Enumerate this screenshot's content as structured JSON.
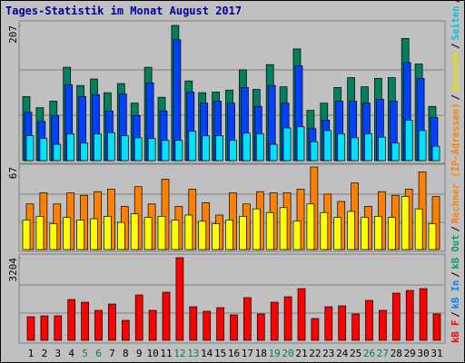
{
  "title": "Tages-Statistik im Monat August 2017",
  "legend": {
    "separator": "/",
    "items": [
      {
        "text": "kB F",
        "color": "#ff0000"
      },
      {
        "text": "kB In",
        "color": "#0080ff"
      },
      {
        "text": "kB Out",
        "color": "#00a060"
      },
      {
        "text": "Rechner (IP-Adressen)",
        "color": "#ff8000"
      },
      {
        "text": "Besuche",
        "color": "#e0e000"
      },
      {
        "text": "Seiten",
        "color": "#00c0e0"
      },
      {
        "text": "Dateien",
        "color": "#0040ff"
      },
      {
        "text": "Anfragen",
        "color": "#00805c"
      }
    ]
  },
  "chart_data": [
    {
      "type": "bar",
      "ylim": [
        0,
        207
      ],
      "yticks": [
        207
      ],
      "series": [
        {
          "name": "Anfragen",
          "color": "#00805c",
          "values": [
            98,
            81,
            91,
            143,
            115,
            125,
            104,
            118,
            88,
            143,
            97,
            207,
            122,
            104,
            105,
            108,
            139,
            109,
            147,
            113,
            171,
            77,
            88,
            112,
            127,
            113,
            126,
            127,
            187,
            148,
            83
          ]
        },
        {
          "name": "Dateien",
          "color": "#0040ff",
          "values": [
            74,
            60,
            69,
            116,
            98,
            101,
            76,
            102,
            69,
            119,
            76,
            185,
            105,
            88,
            91,
            88,
            112,
            83,
            115,
            88,
            145,
            49,
            62,
            91,
            91,
            88,
            94,
            91,
            150,
            126,
            66
          ]
        },
        {
          "name": "Seiten",
          "color": "#00e0ff",
          "values": [
            38,
            34,
            25,
            41,
            27,
            41,
            43,
            38,
            35,
            34,
            31,
            31,
            45,
            38,
            38,
            31,
            42,
            41,
            25,
            50,
            52,
            29,
            46,
            41,
            35,
            41,
            36,
            27,
            62,
            46,
            22
          ]
        }
      ]
    },
    {
      "type": "bar",
      "ylim": [
        0,
        67
      ],
      "yticks": [
        67
      ],
      "series": [
        {
          "name": "Rechner (IP-Adressen)",
          "color": "#ff8000",
          "values": [
            37,
            46,
            37,
            46,
            44,
            47,
            49,
            35,
            51,
            37,
            57,
            35,
            49,
            38,
            28,
            46,
            37,
            47,
            46,
            46,
            49,
            67,
            45,
            39,
            54,
            35,
            47,
            44,
            49,
            63,
            43
          ]
        },
        {
          "name": "Besuche",
          "color": "#ffff00",
          "values": [
            24,
            27,
            21,
            26,
            24,
            25,
            27,
            22,
            29,
            26,
            27,
            24,
            28,
            23,
            21,
            24,
            27,
            33,
            30,
            34,
            23,
            37,
            30,
            26,
            31,
            26,
            27,
            26,
            43,
            33,
            21
          ]
        }
      ]
    },
    {
      "type": "bar",
      "ylim": [
        0,
        3204
      ],
      "yticks": [
        3204
      ],
      "categories": [
        "1",
        "2",
        "3",
        "4",
        "5",
        "6",
        "7",
        "8",
        "9",
        "10",
        "11",
        "12",
        "13",
        "14",
        "15",
        "16",
        "17",
        "18",
        "19",
        "20",
        "21",
        "22",
        "23",
        "24",
        "25",
        "26",
        "27",
        "28",
        "29",
        "30",
        "31"
      ],
      "category_colors": [
        "#000000",
        "#000000",
        "#000000",
        "#000000",
        "#00805c",
        "#00805c",
        "#000000",
        "#000000",
        "#000000",
        "#000000",
        "#000000",
        "#00805c",
        "#00805c",
        "#000000",
        "#000000",
        "#000000",
        "#000000",
        "#000000",
        "#00805c",
        "#00805c",
        "#000000",
        "#000000",
        "#000000",
        "#000000",
        "#000000",
        "#00805c",
        "#00805c",
        "#000000",
        "#000000",
        "#000000",
        "#000000"
      ],
      "series": [
        {
          "name": "kB F",
          "color": "#ff0000",
          "values": [
            915,
            950,
            950,
            1584,
            1478,
            1162,
            1408,
            774,
            1760,
            1162,
            1866,
            3204,
            1302,
            1126,
            1267,
            986,
            1654,
            1021,
            1478,
            1690,
            2006,
            845,
            1302,
            1338,
            1021,
            1549,
            1162,
            1830,
            1936,
            2006,
            1021
          ]
        }
      ]
    }
  ]
}
